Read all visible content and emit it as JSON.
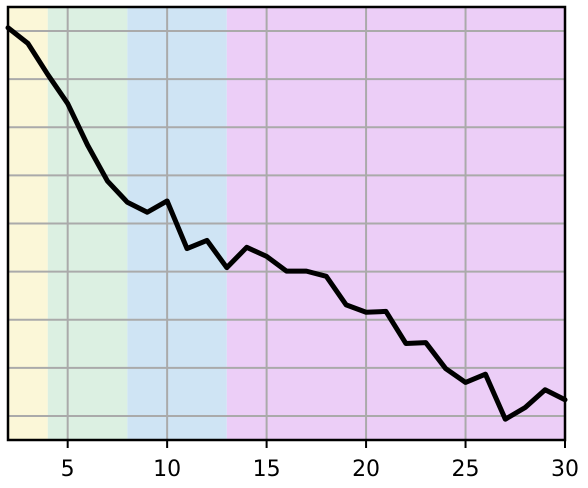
{
  "chart_data": {
    "type": "line",
    "title": "",
    "xlabel": "",
    "ylabel": "",
    "xlim": [
      2,
      30
    ],
    "ylim": [
      0,
      1
    ],
    "grid": true,
    "x_ticks": [
      5,
      10,
      15,
      20,
      25,
      30
    ],
    "y_tick_count": 9,
    "bands": [
      {
        "from": 2,
        "to": 4,
        "color": "#fbf7d8"
      },
      {
        "from": 4,
        "to": 8,
        "color": "#dcf0e2"
      },
      {
        "from": 8,
        "to": 13,
        "color": "#cfe4f4"
      },
      {
        "from": 13,
        "to": 30,
        "color": "#eccef7"
      }
    ],
    "series": [
      {
        "color": "#000000",
        "x": [
          2,
          3,
          4,
          5,
          6,
          7,
          8,
          9,
          10,
          11,
          12,
          13,
          14,
          15,
          16,
          17,
          18,
          19,
          20,
          21,
          22,
          23,
          24,
          25,
          26,
          27,
          28,
          29,
          30
        ],
        "y": [
          0.952,
          0.916,
          0.844,
          0.777,
          0.681,
          0.598,
          0.549,
          0.526,
          0.552,
          0.442,
          0.461,
          0.398,
          0.445,
          0.424,
          0.39,
          0.39,
          0.378,
          0.312,
          0.295,
          0.297,
          0.223,
          0.225,
          0.165,
          0.133,
          0.152,
          0.048,
          0.075,
          0.116,
          0.093
        ]
      }
    ]
  }
}
